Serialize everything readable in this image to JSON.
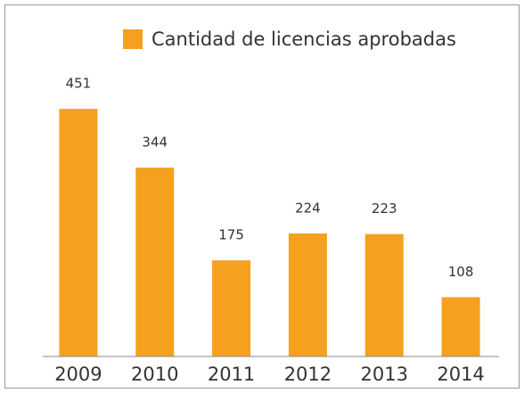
{
  "chart_data": {
    "type": "bar",
    "categories": [
      "2009",
      "2010",
      "2011",
      "2012",
      "2013",
      "2014"
    ],
    "series": [
      {
        "name": "Cantidad de licencias aprobadas",
        "color": "#f5a01f",
        "values": [
          451,
          344,
          175,
          224,
          223,
          108
        ]
      }
    ],
    "ylim": [
      0,
      500
    ],
    "grid": false,
    "legend": "top"
  }
}
